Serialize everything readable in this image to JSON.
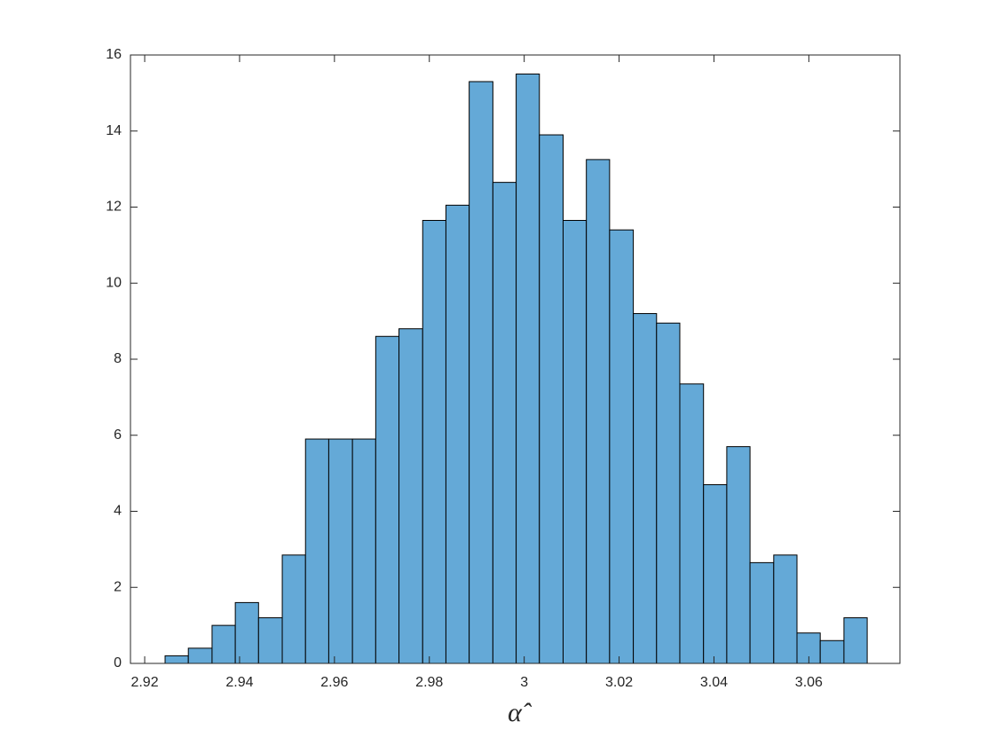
{
  "chart_data": {
    "type": "histogram",
    "x_label": "α̂",
    "bins": [
      2.9243,
      2.9292,
      2.9342,
      2.9391,
      2.944,
      2.949,
      2.9539,
      2.9588,
      2.9638,
      2.9687,
      2.9736,
      2.9786,
      2.9835,
      2.9884,
      2.9934,
      2.9983,
      3.0032,
      3.0082,
      3.0131,
      3.018,
      3.023,
      3.0279,
      3.0328,
      3.0378,
      3.0427,
      3.0476,
      3.0526,
      3.0575,
      3.0624,
      3.0674,
      3.0723
    ],
    "values": [
      0.2,
      0.4,
      1.0,
      1.6,
      1.2,
      2.85,
      5.9,
      5.9,
      5.9,
      8.6,
      8.8,
      11.65,
      12.05,
      15.3,
      12.65,
      15.5,
      13.9,
      11.65,
      13.25,
      11.4,
      9.2,
      8.95,
      7.35,
      4.7,
      5.7,
      2.65,
      2.85,
      0.8,
      0.6,
      1.2
    ],
    "color": "#64a9d7",
    "xlim": [
      2.917,
      3.0792
    ],
    "xticks": [
      2.92,
      2.94,
      2.96,
      2.98,
      3,
      3.02,
      3.04,
      3.06
    ],
    "ylim": [
      0,
      16
    ],
    "yticks": [
      0,
      2,
      4,
      6,
      8,
      10,
      12,
      14,
      16
    ]
  }
}
